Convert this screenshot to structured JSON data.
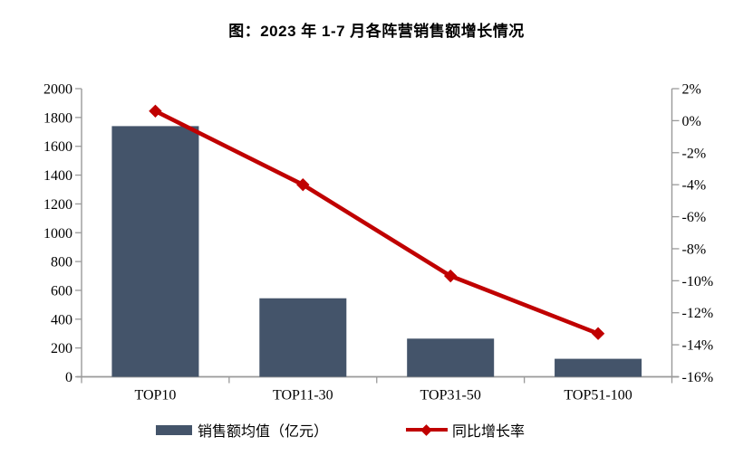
{
  "title": "图：2023 年 1-7 月各阵营销售额增长情况",
  "chart_data": {
    "type": "combo-bar-line",
    "title": "图：2023 年 1-7 月各阵营销售额增长情况",
    "categories": [
      "TOP10",
      "TOP11-30",
      "TOP31-50",
      "TOP51-100"
    ],
    "series": [
      {
        "name": "销售额均值（亿元）",
        "type": "bar",
        "axis": "left",
        "color": "#44546A",
        "values": [
          1740,
          545,
          265,
          125
        ]
      },
      {
        "name": "同比增长率",
        "type": "line",
        "axis": "right",
        "color": "#C00000",
        "marker": "diamond",
        "values": [
          0.6,
          -4.0,
          -9.7,
          -13.3
        ]
      }
    ],
    "left_axis": {
      "min": 0,
      "max": 2000,
      "step": 200,
      "tick_labels": [
        "0",
        "200",
        "400",
        "600",
        "800",
        "1000",
        "1200",
        "1400",
        "1600",
        "1800",
        "2000"
      ]
    },
    "right_axis": {
      "min": -16,
      "max": 2,
      "step": 2,
      "tick_labels": [
        "2%",
        "0%",
        "-2%",
        "-4%",
        "-6%",
        "-8%",
        "-10%",
        "-12%",
        "-14%",
        "-16%"
      ]
    },
    "axis_color": "#9A9A9A",
    "grid": false,
    "legend_position": "bottom"
  }
}
